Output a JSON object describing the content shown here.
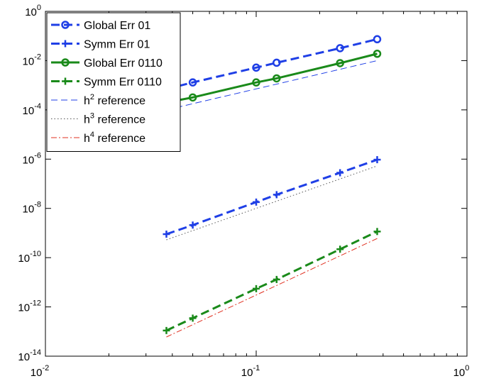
{
  "chart_data": {
    "type": "line",
    "xscale": "log",
    "yscale": "log",
    "xlim": [
      0.01,
      1
    ],
    "ylim": [
      1e-14,
      1
    ],
    "grid": false,
    "legend_placement": "top-left",
    "x_ticks": [
      {
        "value": 0.01,
        "base": "10",
        "exp": "-2"
      },
      {
        "value": 0.1,
        "base": "10",
        "exp": "-1"
      },
      {
        "value": 1,
        "base": "10",
        "exp": "0"
      }
    ],
    "y_ticks": [
      {
        "value": 1,
        "base": "10",
        "exp": "0"
      },
      {
        "value": 0.01,
        "base": "10",
        "exp": "-2"
      },
      {
        "value": 0.0001,
        "base": "10",
        "exp": "-4"
      },
      {
        "value": 1e-06,
        "base": "10",
        "exp": "-6"
      },
      {
        "value": 1e-08,
        "base": "10",
        "exp": "-8"
      },
      {
        "value": 1e-10,
        "base": "10",
        "exp": "-10"
      },
      {
        "value": 1e-12,
        "base": "10",
        "exp": "-12"
      },
      {
        "value": 1e-14,
        "base": "10",
        "exp": "-14"
      }
    ],
    "series": [
      {
        "name": "Global Err 01",
        "color": "#1f3fe6",
        "dash": "dashed",
        "marker": "circle",
        "x": [
          0.0375,
          0.05,
          0.1,
          0.125,
          0.25,
          0.375
        ],
        "y": [
          0.0007,
          0.0013,
          0.0052,
          0.0082,
          0.032,
          0.074
        ]
      },
      {
        "name": "Symm Err 01",
        "color": "#1f3fe6",
        "dash": "dashed",
        "marker": "plus",
        "x": [
          0.0375,
          0.05,
          0.1,
          0.125,
          0.25,
          0.375
        ],
        "y": [
          9e-10,
          2.1e-09,
          1.8e-08,
          3.6e-08,
          2.8e-07,
          9.5e-07
        ]
      },
      {
        "name": "Global Err 0110",
        "color": "#1a8a1a",
        "dash": "solid",
        "marker": "circle",
        "x": [
          0.0375,
          0.05,
          0.1,
          0.125,
          0.25,
          0.375
        ],
        "y": [
          0.0002,
          0.00032,
          0.0013,
          0.0019,
          0.0079,
          0.019
        ]
      },
      {
        "name": "Symm Err 0110",
        "color": "#1a8a1a",
        "dash": "dashed",
        "marker": "plus",
        "x": [
          0.0375,
          0.05,
          0.1,
          0.125,
          0.25,
          0.375
        ],
        "y": [
          1.1e-13,
          3.5e-13,
          5.5e-12,
          1.3e-11,
          2.2e-10,
          1.15e-09
        ]
      },
      {
        "name": "h",
        "name_sup": "2",
        "name_suffix": " reference",
        "color": "#1f3fe6",
        "dash": "thin-dashed",
        "marker": "none",
        "x": [
          0.0375,
          0.375
        ],
        "y": [
          0.0001,
          0.01
        ]
      },
      {
        "name": "h",
        "name_sup": "3",
        "name_suffix": " reference",
        "color": "#555555",
        "dash": "dotted",
        "marker": "none",
        "x": [
          0.0375,
          0.375
        ],
        "y": [
          5.3e-10,
          5.3e-07
        ]
      },
      {
        "name": "h",
        "name_sup": "4",
        "name_suffix": " reference",
        "color": "#e03020",
        "dash": "dashdot",
        "marker": "none",
        "x": [
          0.0375,
          0.375
        ],
        "y": [
          6e-14,
          6e-10
        ]
      }
    ]
  }
}
